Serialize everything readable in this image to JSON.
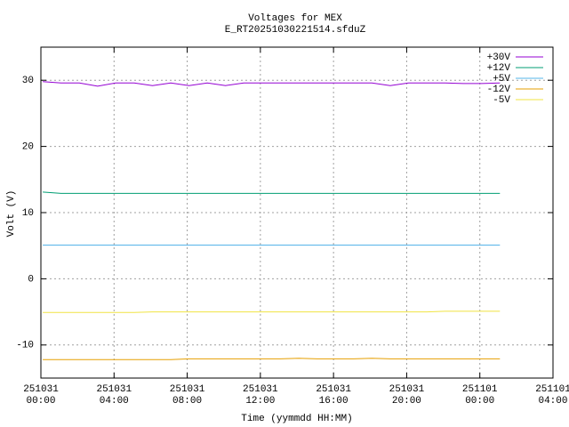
{
  "chart_data": {
    "type": "line",
    "title": "Voltages for MEX",
    "subtitle": "E_RT20251030221514.sfduZ",
    "x_label": "Time (yymmdd HH:MM)",
    "y_label": "Volt (V)",
    "xlim": [
      0,
      28
    ],
    "xticks": [
      {
        "value": 0,
        "label": "251031\n00:00"
      },
      {
        "value": 4,
        "label": "251031\n04:00"
      },
      {
        "value": 8,
        "label": "251031\n08:00"
      },
      {
        "value": 12,
        "label": "251031\n12:00"
      },
      {
        "value": 16,
        "label": "251031\n16:00"
      },
      {
        "value": 20,
        "label": "251031\n20:00"
      },
      {
        "value": 24,
        "label": "251101\n00:00"
      },
      {
        "value": 28,
        "label": "251101\n04:00"
      }
    ],
    "ylim": [
      -15,
      35
    ],
    "yticks": [
      -10,
      0,
      10,
      20,
      30
    ],
    "grid": true,
    "legend": "top-right",
    "x": [
      0.1,
      1.1,
      2.1,
      3.1,
      4.1,
      5.1,
      6.1,
      7.1,
      8.1,
      9.1,
      10.1,
      11.1,
      12.1,
      13.1,
      14.1,
      15.1,
      16.1,
      17.1,
      18.1,
      19.1,
      20.1,
      21.1,
      22.1,
      23.1,
      24.1,
      25.1
    ],
    "series": [
      {
        "name": "+30V",
        "color": "#9400d3",
        "values": [
          29.8,
          29.6,
          29.6,
          29.1,
          29.6,
          29.6,
          29.2,
          29.6,
          29.2,
          29.6,
          29.2,
          29.6,
          29.6,
          29.6,
          29.6,
          29.6,
          29.6,
          29.6,
          29.6,
          29.2,
          29.6,
          29.6,
          29.6,
          29.5,
          29.5,
          29.6
        ]
      },
      {
        "name": "+12V",
        "color": "#009e73",
        "values": [
          13.1,
          12.9,
          12.9,
          12.9,
          12.9,
          12.9,
          12.9,
          12.9,
          12.9,
          12.9,
          12.9,
          12.9,
          12.9,
          12.9,
          12.9,
          12.9,
          12.9,
          12.9,
          12.9,
          12.9,
          12.9,
          12.9,
          12.9,
          12.9,
          12.9,
          12.9
        ]
      },
      {
        "name": "+5V",
        "color": "#56b4e9",
        "values": [
          5.1,
          5.1,
          5.1,
          5.1,
          5.1,
          5.1,
          5.1,
          5.1,
          5.1,
          5.1,
          5.1,
          5.1,
          5.1,
          5.1,
          5.1,
          5.1,
          5.1,
          5.1,
          5.1,
          5.1,
          5.1,
          5.1,
          5.1,
          5.1,
          5.1,
          5.1
        ]
      },
      {
        "name": "-12V",
        "color": "#e69f00",
        "values": [
          -12.2,
          -12.2,
          -12.2,
          -12.2,
          -12.2,
          -12.2,
          -12.2,
          -12.2,
          -12.1,
          -12.1,
          -12.1,
          -12.1,
          -12.1,
          -12.1,
          -12.0,
          -12.1,
          -12.1,
          -12.1,
          -12.0,
          -12.1,
          -12.1,
          -12.1,
          -12.1,
          -12.1,
          -12.1,
          -12.1
        ]
      },
      {
        "name": "-5V",
        "color": "#f0e442",
        "values": [
          -5.1,
          -5.1,
          -5.1,
          -5.1,
          -5.1,
          -5.1,
          -5.0,
          -5.0,
          -5.0,
          -5.0,
          -5.0,
          -5.0,
          -5.0,
          -5.0,
          -5.0,
          -5.0,
          -5.0,
          -5.0,
          -5.0,
          -5.0,
          -5.0,
          -5.0,
          -4.9,
          -4.9,
          -4.9,
          -4.9
        ]
      }
    ]
  }
}
